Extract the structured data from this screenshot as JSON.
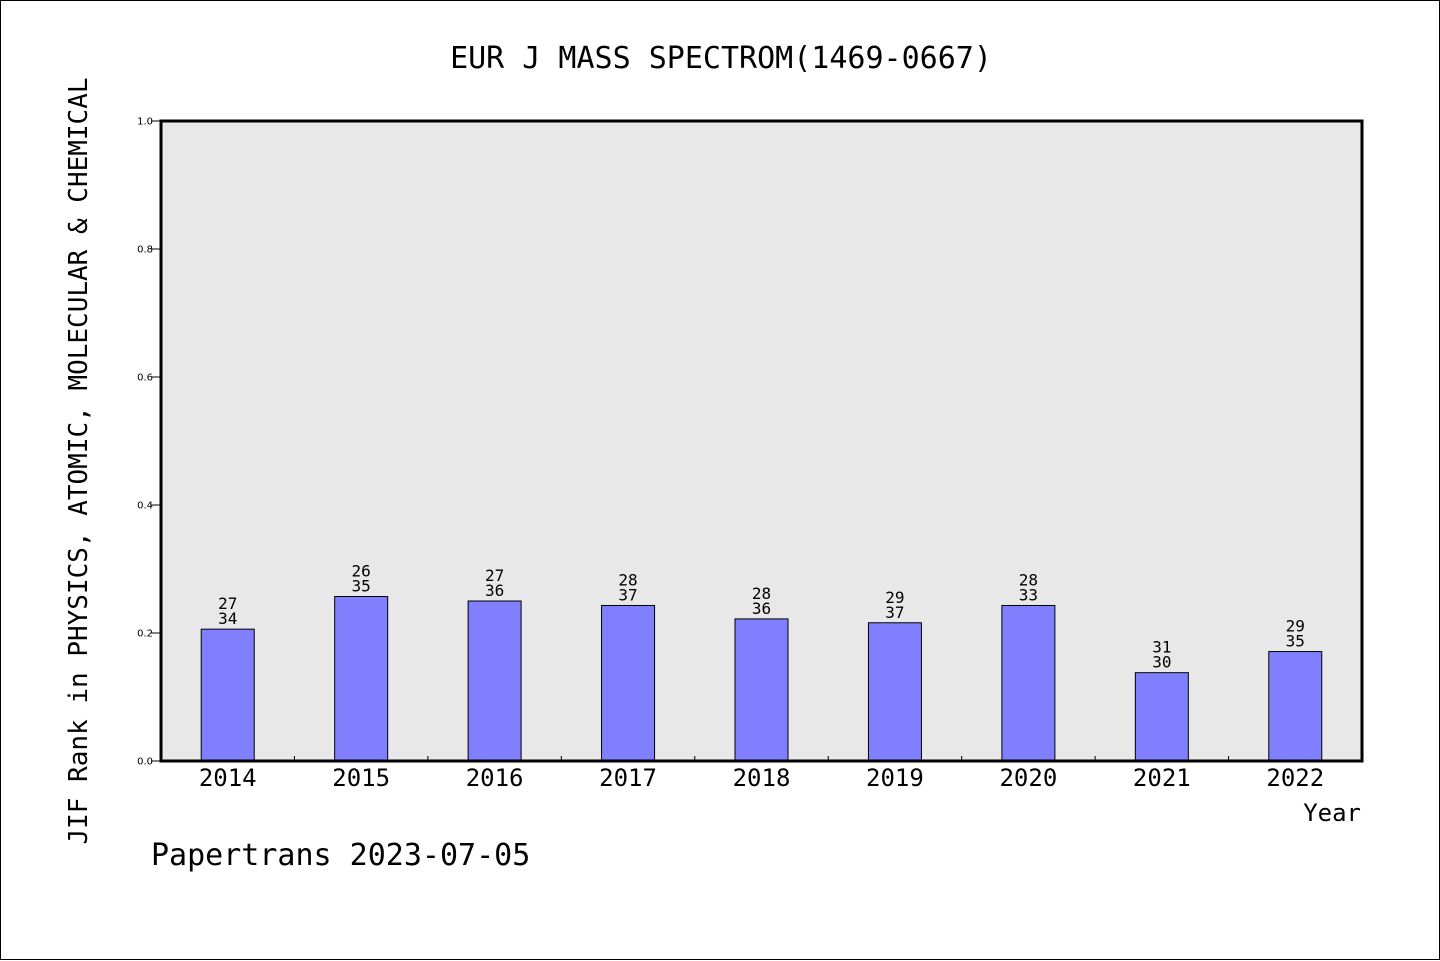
{
  "chart_data": {
    "type": "bar",
    "title": "EUR J MASS SPECTROM(1469-0667)",
    "xlabel": "Year",
    "ylabel": "JIF Rank in PHYSICS, ATOMIC, MOLECULAR & CHEMICAL",
    "ylim": [
      0,
      1.0
    ],
    "yticks": [
      "0.0",
      "0.2",
      "0.4",
      "0.6",
      "0.8",
      "1.0"
    ],
    "grid": false,
    "categories": [
      "2014",
      "2015",
      "2016",
      "2017",
      "2018",
      "2019",
      "2020",
      "2021",
      "2022"
    ],
    "values": [
      0.206,
      0.257,
      0.25,
      0.243,
      0.222,
      0.216,
      0.243,
      0.138,
      0.171
    ],
    "labels_top": [
      "27",
      "26",
      "27",
      "28",
      "28",
      "29",
      "28",
      "31",
      "29"
    ],
    "labels_bottom": [
      "34",
      "35",
      "36",
      "37",
      "36",
      "37",
      "33",
      "30",
      "35"
    ],
    "colors": {
      "bar": "#8080ff",
      "plot_bg": "#e8e8e8"
    }
  },
  "footer": {
    "text": "Papertrans 2023-07-05"
  }
}
